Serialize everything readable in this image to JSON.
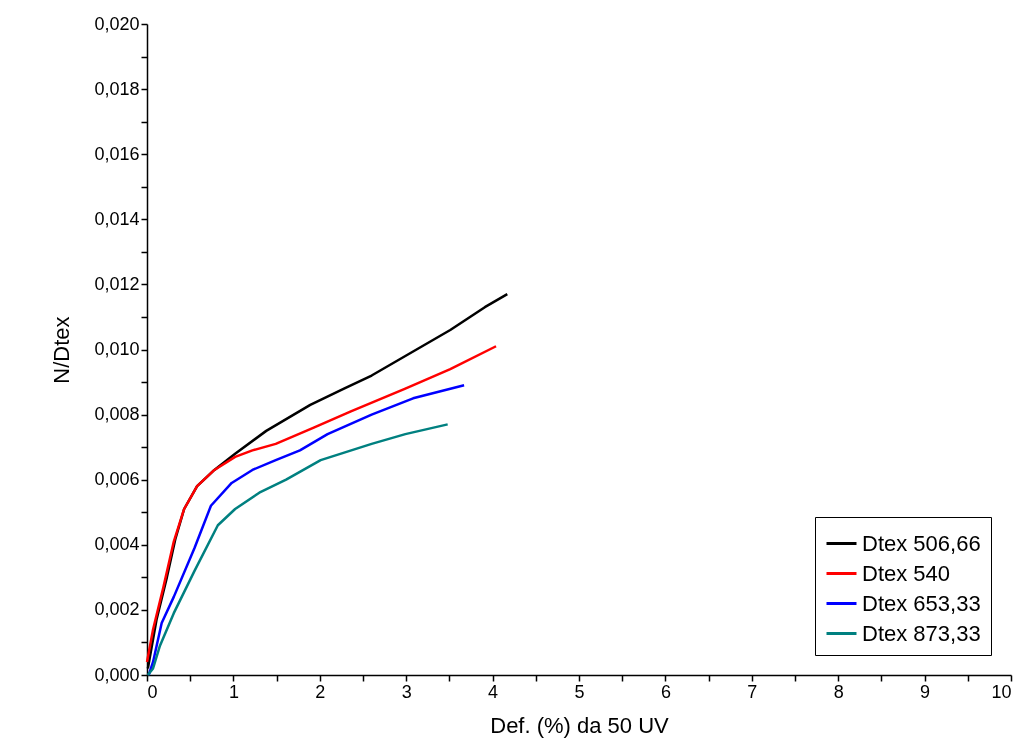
{
  "chart_data": {
    "type": "line",
    "xlabel": "Def. (%) da 50 UV",
    "ylabel": "N/Dtex",
    "xlim": [
      0,
      10
    ],
    "xticks": [
      0,
      {
        "value": 0.5,
        "label": null
      },
      1,
      {
        "value": 1.5,
        "label": null
      },
      2,
      {
        "value": 2.5,
        "label": null
      },
      3,
      {
        "value": 3.5,
        "label": null
      },
      4,
      {
        "value": 4.5,
        "label": null
      },
      5,
      {
        "value": 5.5,
        "label": null
      },
      6,
      {
        "value": 6.5,
        "label": null
      },
      7,
      {
        "value": 7.5,
        "label": null
      },
      8,
      {
        "value": 8.5,
        "label": null
      },
      9,
      {
        "value": 9.5,
        "label": null
      },
      10
    ],
    "ylim": [
      0,
      0.02
    ],
    "yticks": [
      {
        "value": 0,
        "label": "0,000"
      },
      {
        "value": 0.001,
        "label": null
      },
      {
        "value": 0.002,
        "label": "0,002"
      },
      {
        "value": 0.003,
        "label": null
      },
      {
        "value": 0.004,
        "label": "0,004"
      },
      {
        "value": 0.005,
        "label": null
      },
      {
        "value": 0.006,
        "label": "0,006"
      },
      {
        "value": 0.007,
        "label": null
      },
      {
        "value": 0.008,
        "label": "0,008"
      },
      {
        "value": 0.009,
        "label": null
      },
      {
        "value": 0.01,
        "label": "0,010"
      },
      {
        "value": 0.011,
        "label": null
      },
      {
        "value": 0.012,
        "label": "0,012"
      },
      {
        "value": 0.013,
        "label": null
      },
      {
        "value": 0.014,
        "label": "0,014"
      },
      {
        "value": 0.015,
        "label": null
      },
      {
        "value": 0.016,
        "label": "0,016"
      },
      {
        "value": 0.017,
        "label": null
      },
      {
        "value": 0.018,
        "label": "0,018"
      },
      {
        "value": 0.019,
        "label": null
      },
      {
        "value": 0.02,
        "label": "0,020"
      }
    ],
    "grid": false,
    "legend": "bottom right",
    "marker": "none",
    "line_style": "solid",
    "series": [
      {
        "name": "Dtex 506,66",
        "color": "#000000",
        "x": [
          0.01,
          0.03,
          0.11,
          0.23,
          0.33,
          0.43,
          0.58,
          0.78,
          1.02,
          1.38,
          1.89,
          2.28,
          2.6,
          2.99,
          3.51,
          3.91,
          4.17
        ],
        "values": [
          0.0002,
          0.0005,
          0.0017,
          0.003,
          0.0042,
          0.0051,
          0.0058,
          0.0063,
          0.0068,
          0.0075,
          0.0083,
          0.0088,
          0.0092,
          0.0098,
          0.0106,
          0.0113,
          0.0117
        ]
      },
      {
        "name": "Dtex 540",
        "color": "#ff0000",
        "x": [
          0.0,
          0.07,
          0.19,
          0.31,
          0.43,
          0.58,
          0.78,
          1.02,
          1.22,
          1.49,
          1.93,
          2.36,
          2.99,
          3.51,
          4.04
        ],
        "values": [
          0.0004,
          0.0014,
          0.0027,
          0.0041,
          0.0051,
          0.0058,
          0.0063,
          0.0067,
          0.0069,
          0.0071,
          0.0076,
          0.0081,
          0.0088,
          0.0094,
          0.0101
        ]
      },
      {
        "name": "Dtex 653,33",
        "color": "#0000ff",
        "x": [
          0.02,
          0.07,
          0.17,
          0.31,
          0.55,
          0.74,
          0.98,
          1.22,
          1.49,
          1.77,
          2.09,
          2.6,
          3.08,
          3.67
        ],
        "values": [
          0.0,
          0.0004,
          0.0016,
          0.0024,
          0.0039,
          0.0052,
          0.0059,
          0.0063,
          0.0066,
          0.0069,
          0.0074,
          0.008,
          0.0085,
          0.0089
        ]
      },
      {
        "name": "Dtex 873,33",
        "color": "#008080",
        "x": [
          0.01,
          0.07,
          0.15,
          0.31,
          0.55,
          0.82,
          1.02,
          1.3,
          1.61,
          2.01,
          2.6,
          2.99,
          3.48
        ],
        "values": [
          0.0,
          0.0002,
          0.0009,
          0.0019,
          0.0032,
          0.0046,
          0.0051,
          0.0056,
          0.006,
          0.0066,
          0.0071,
          0.0074,
          0.0077
        ]
      }
    ]
  }
}
